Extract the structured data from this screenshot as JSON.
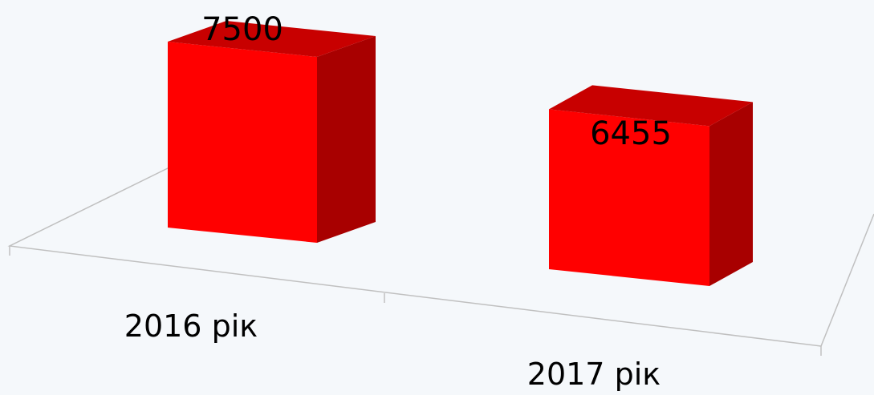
{
  "chart_data": {
    "type": "bar",
    "categories": [
      "2016 рік",
      "2017 рік"
    ],
    "values": [
      7500,
      6455
    ],
    "title": "",
    "xlabel": "",
    "ylabel": "",
    "ylim": [
      0,
      7500
    ],
    "grid": false,
    "legend": "none",
    "style": "3d"
  },
  "colors": {
    "bar_front": "#ff0000",
    "bar_top": "#c80000",
    "bar_side": "#a80000",
    "axis": "#c0c0c0",
    "background": "#f5f8fb"
  }
}
